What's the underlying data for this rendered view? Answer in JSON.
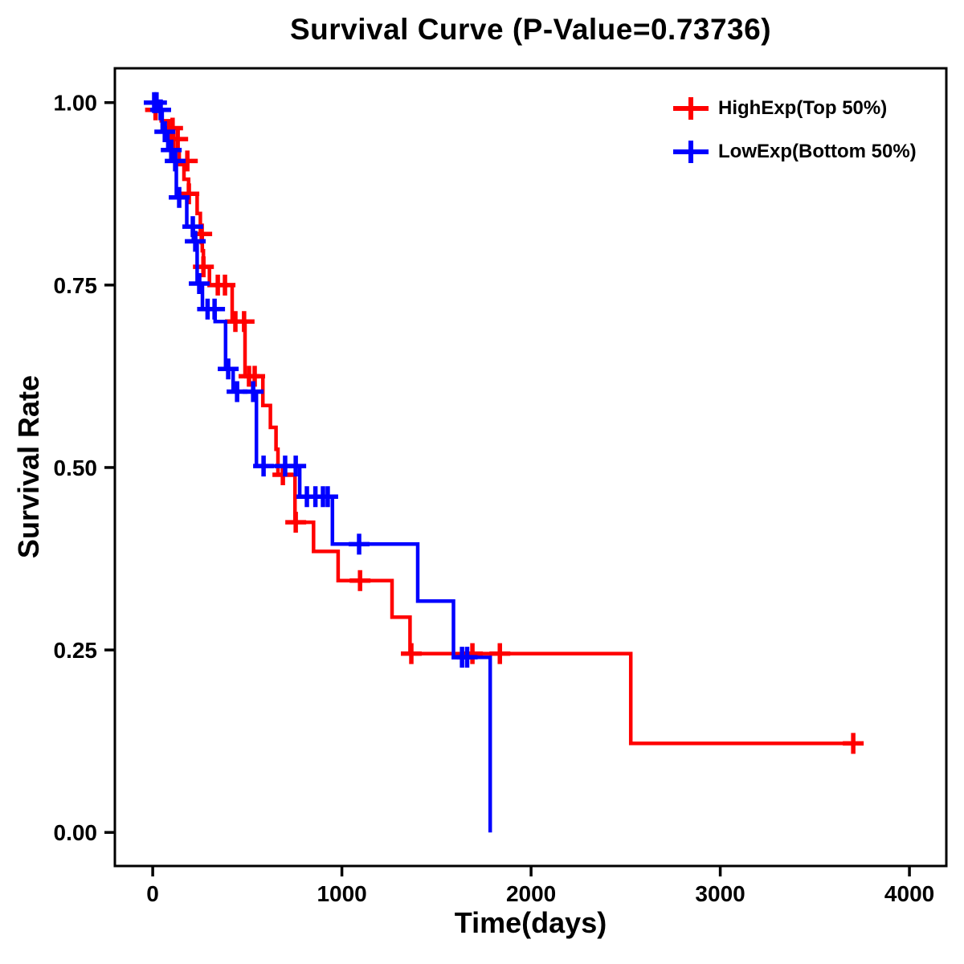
{
  "title": "Survival Curve (P-Value=0.73736)",
  "p_value_text": "0.73736",
  "axes": {
    "x_label": "Time(days)",
    "y_label": "Survival Rate",
    "x_ticks": [
      {
        "value": 0,
        "label": "0"
      },
      {
        "value": 1000,
        "label": "1000"
      },
      {
        "value": 2000,
        "label": "2000"
      },
      {
        "value": 3000,
        "label": "3000"
      },
      {
        "value": 4000,
        "label": "4000"
      }
    ],
    "y_ticks": [
      {
        "value": 0.0,
        "label": "0.00"
      },
      {
        "value": 0.25,
        "label": "0.25"
      },
      {
        "value": 0.5,
        "label": "0.50"
      },
      {
        "value": 0.75,
        "label": "0.75"
      },
      {
        "value": 1.0,
        "label": "1.00"
      }
    ]
  },
  "legend": {
    "items": [
      {
        "label": "HighExp(Top 50%)",
        "color": "#FF0000",
        "marker": "plus-marker-icon"
      },
      {
        "label": "LowExp(Bottom 50%)",
        "color": "#0000FF",
        "marker": "plus-marker-icon"
      }
    ]
  },
  "chart_data": {
    "type": "line",
    "subtype": "kaplan-meier-step-survival",
    "title": "Survival Curve (P-Value=0.73736)",
    "xlabel": "Time(days)",
    "ylabel": "Survival Rate",
    "xlim": [
      -200,
      4195
    ],
    "ylim": [
      -0.046,
      1.047
    ],
    "xticks": [
      0,
      1000,
      2000,
      3000,
      4000
    ],
    "yticks": [
      0.0,
      0.25,
      0.5,
      0.75,
      1.0
    ],
    "grid": false,
    "legend_position": "top-right",
    "frame_color": "#000000",
    "line_width": 4.5,
    "series": [
      {
        "name": "HighExp(Top 50%)",
        "color": "#FF0000",
        "steps": [
          [
            0,
            1.0
          ],
          [
            20,
            0.99
          ],
          [
            45,
            0.975
          ],
          [
            85,
            0.955
          ],
          [
            110,
            0.935
          ],
          [
            140,
            0.915
          ],
          [
            165,
            0.895
          ],
          [
            190,
            0.875
          ],
          [
            235,
            0.848
          ],
          [
            252,
            0.82
          ],
          [
            262,
            0.797
          ],
          [
            268,
            0.775
          ],
          [
            300,
            0.75
          ],
          [
            420,
            0.7
          ],
          [
            488,
            0.625
          ],
          [
            582,
            0.585
          ],
          [
            622,
            0.555
          ],
          [
            652,
            0.525
          ],
          [
            662,
            0.49
          ],
          [
            752,
            0.425
          ],
          [
            850,
            0.385
          ],
          [
            980,
            0.345
          ],
          [
            1265,
            0.295
          ],
          [
            1360,
            0.245
          ],
          [
            2527,
            0.122
          ],
          [
            3705,
            0.122
          ]
        ],
        "censor_marks": [
          [
            15,
            0.99
          ],
          [
            105,
            0.965
          ],
          [
            132,
            0.95
          ],
          [
            183,
            0.92
          ],
          [
            191,
            0.875
          ],
          [
            259,
            0.82
          ],
          [
            268,
            0.775
          ],
          [
            344,
            0.75
          ],
          [
            382,
            0.75
          ],
          [
            437,
            0.7
          ],
          [
            483,
            0.7
          ],
          [
            509,
            0.625
          ],
          [
            539,
            0.625
          ],
          [
            688,
            0.49
          ],
          [
            756,
            0.425
          ],
          [
            1096,
            0.345
          ],
          [
            1367,
            0.245
          ],
          [
            1690,
            0.245
          ],
          [
            1835,
            0.245
          ],
          [
            3703,
            0.122
          ]
        ]
      },
      {
        "name": "LowExp(Bottom 50%)",
        "color": "#0000FF",
        "steps": [
          [
            0,
            1.0
          ],
          [
            25,
            0.99
          ],
          [
            50,
            0.96
          ],
          [
            80,
            0.935
          ],
          [
            105,
            0.92
          ],
          [
            125,
            0.87
          ],
          [
            180,
            0.83
          ],
          [
            215,
            0.81
          ],
          [
            235,
            0.752
          ],
          [
            263,
            0.717
          ],
          [
            330,
            0.7
          ],
          [
            385,
            0.635
          ],
          [
            425,
            0.604
          ],
          [
            548,
            0.502
          ],
          [
            777,
            0.46
          ],
          [
            950,
            0.395
          ],
          [
            1401,
            0.317
          ],
          [
            1590,
            0.24
          ],
          [
            1784,
            0.0
          ]
        ],
        "censor_marks": [
          [
            8,
            1.0
          ],
          [
            20,
            1.0
          ],
          [
            42,
            0.99
          ],
          [
            64,
            0.96
          ],
          [
            98,
            0.935
          ],
          [
            119,
            0.92
          ],
          [
            140,
            0.87
          ],
          [
            212,
            0.83
          ],
          [
            225,
            0.81
          ],
          [
            246,
            0.752
          ],
          [
            290,
            0.717
          ],
          [
            327,
            0.717
          ],
          [
            399,
            0.635
          ],
          [
            446,
            0.604
          ],
          [
            531,
            0.604
          ],
          [
            586,
            0.502
          ],
          [
            700,
            0.502
          ],
          [
            756,
            0.502
          ],
          [
            815,
            0.46
          ],
          [
            860,
            0.46
          ],
          [
            900,
            0.46
          ],
          [
            925,
            0.46
          ],
          [
            1091,
            0.395
          ],
          [
            1635,
            0.24
          ],
          [
            1662,
            0.24
          ]
        ]
      }
    ]
  }
}
